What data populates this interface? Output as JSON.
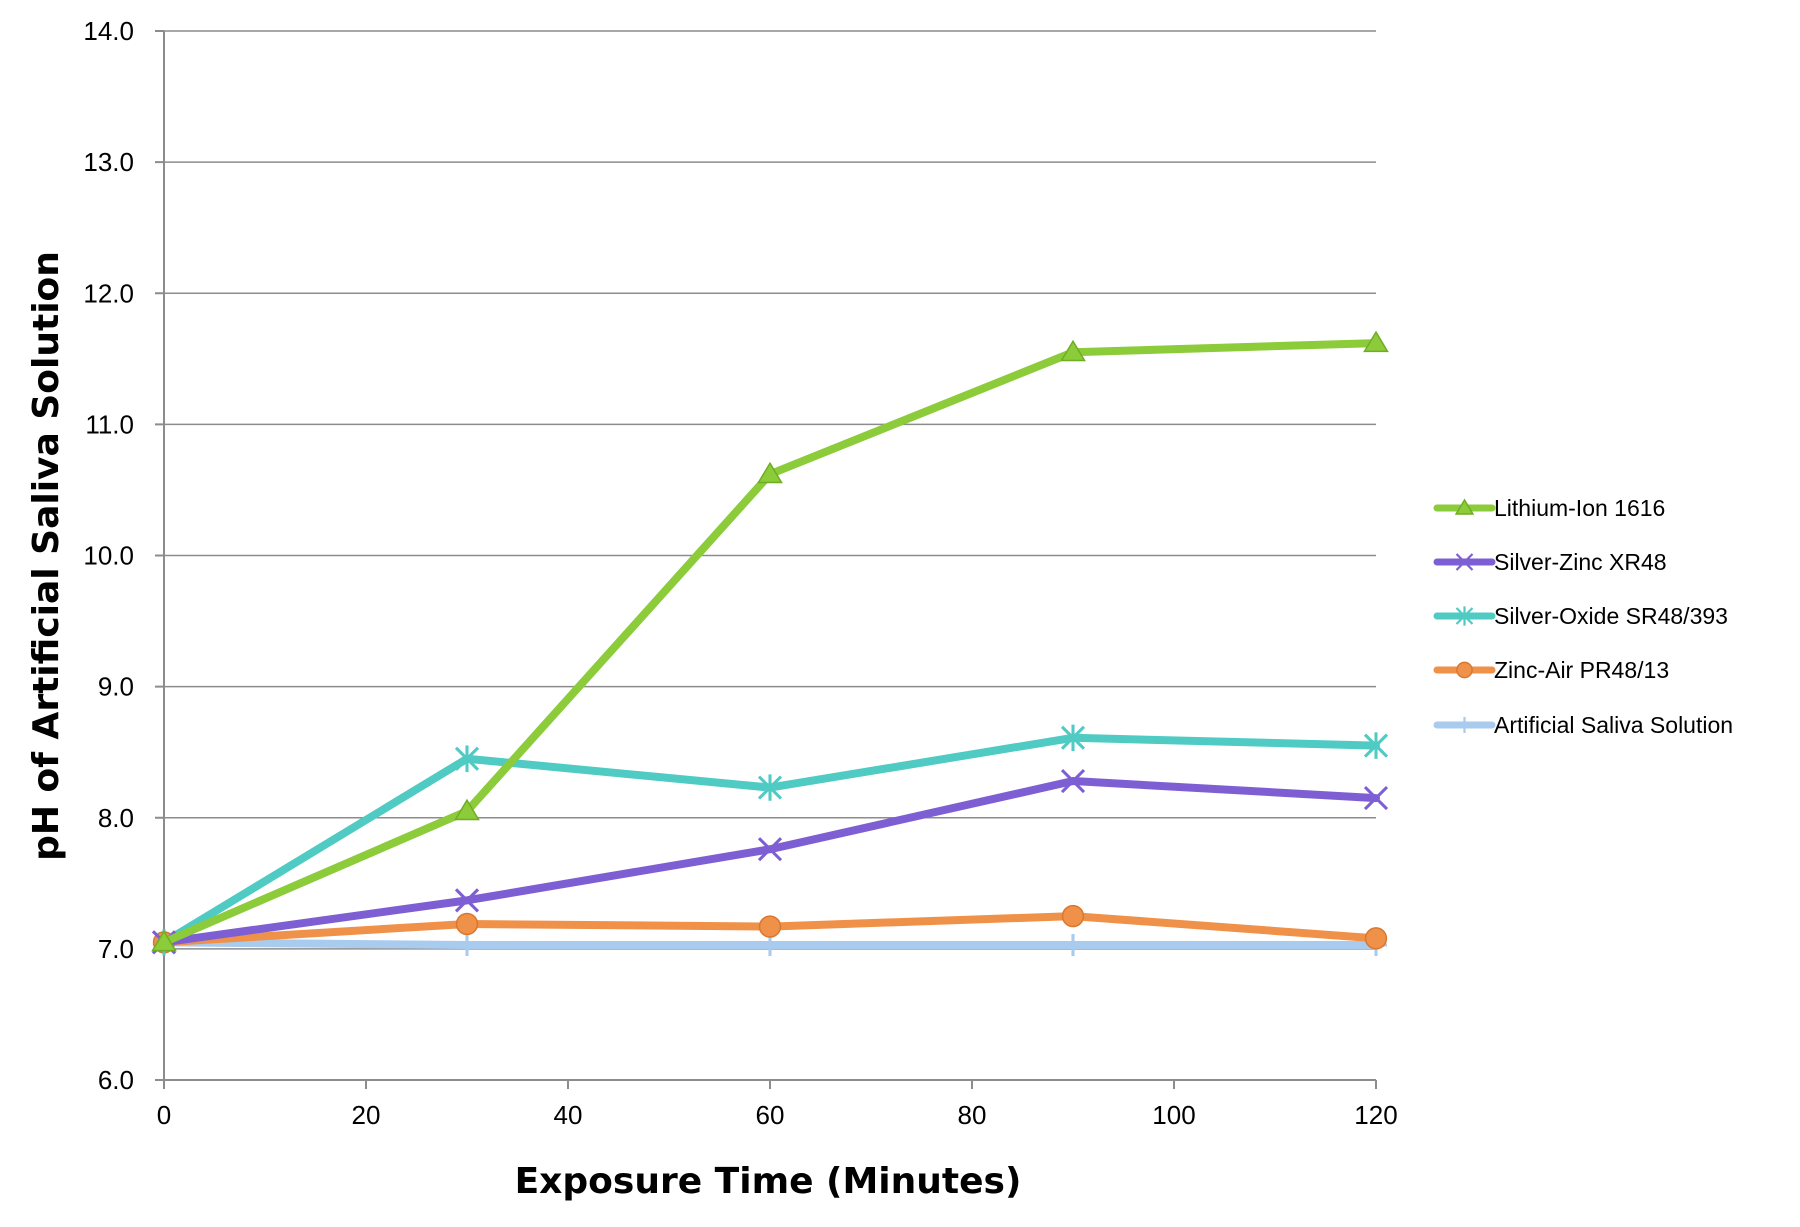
{
  "chart_data": {
    "type": "line",
    "title": "",
    "xlabel": "Exposure Time (Minutes)",
    "ylabel": "pH of Artificial Saliva Solution",
    "xlim": [
      0,
      120
    ],
    "ylim": [
      6.0,
      14.0
    ],
    "x_ticks": [
      "0",
      "20",
      "40",
      "60",
      "80",
      "100",
      "120"
    ],
    "y_ticks": [
      "6.0",
      "7.0",
      "8.0",
      "9.0",
      "10.0",
      "11.0",
      "12.0",
      "13.0",
      "14.0"
    ],
    "grid": "horizontal",
    "legend_position": "right",
    "x": [
      0,
      30,
      60,
      90,
      120
    ],
    "series": [
      {
        "name": "Lithium-Ion 1616",
        "color": "#8CCB3A",
        "marker": "triangle",
        "values": [
          7.05,
          8.05,
          10.62,
          11.55,
          11.62
        ]
      },
      {
        "name": "Silver-Zinc XR48",
        "color": "#7E5FD3",
        "marker": "x",
        "values": [
          7.05,
          7.37,
          7.76,
          8.28,
          8.15
        ]
      },
      {
        "name": "Silver-Oxide SR48/393",
        "color": "#4FCBC4",
        "marker": "star",
        "values": [
          7.05,
          8.45,
          8.23,
          8.61,
          8.55
        ]
      },
      {
        "name": "Zinc-Air PR48/13",
        "color": "#F0914A",
        "marker": "circle",
        "values": [
          7.05,
          7.19,
          7.17,
          7.25,
          7.08
        ]
      },
      {
        "name": "Artificial Saliva Solution",
        "color": "#A9CBEE",
        "marker": "plus",
        "values": [
          7.05,
          7.03,
          7.03,
          7.03,
          7.03
        ]
      }
    ]
  }
}
